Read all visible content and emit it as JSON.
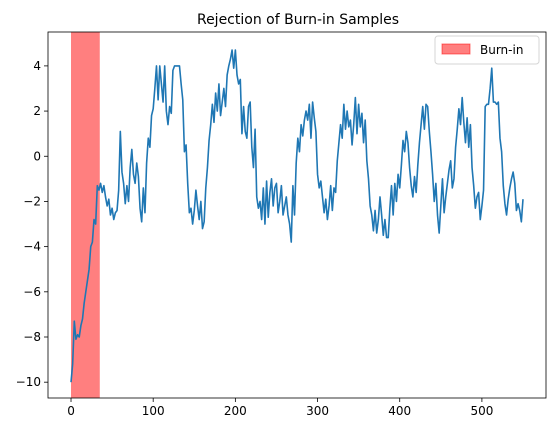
{
  "chart_data": {
    "type": "line",
    "title": "Rejection of Burn-in Samples",
    "xlabel": "",
    "ylabel": "",
    "xlim": [
      -28,
      578
    ],
    "ylim": [
      -10.7,
      5.5
    ],
    "xticks": [
      0,
      100,
      200,
      300,
      400,
      500
    ],
    "yticks": [
      -10,
      -8,
      -6,
      -4,
      -2,
      0,
      2,
      4
    ],
    "xtick_labels": [
      "0",
      "100",
      "200",
      "300",
      "400",
      "500"
    ],
    "ytick_labels": [
      "−10",
      "−8",
      "−6",
      "−4",
      "−2",
      "0",
      "2",
      "4"
    ],
    "grid": false,
    "legend_position": "top-right",
    "burn_in": {
      "name": "Burn-in",
      "x_start": 0,
      "x_end": 35,
      "color": "#ff0000",
      "opacity": 0.5
    },
    "series": [
      {
        "color": "#1f77b4",
        "points": [
          [
            0,
            -10.0
          ],
          [
            2,
            -9.2
          ],
          [
            4,
            -7.3
          ],
          [
            6,
            -8.1
          ],
          [
            8,
            -7.9
          ],
          [
            10,
            -8.0
          ],
          [
            12,
            -7.5
          ],
          [
            14,
            -7.2
          ],
          [
            16,
            -6.5
          ],
          [
            18,
            -6.0
          ],
          [
            20,
            -5.5
          ],
          [
            22,
            -5.0
          ],
          [
            24,
            -4.0
          ],
          [
            26,
            -3.8
          ],
          [
            28,
            -2.8
          ],
          [
            30,
            -3.0
          ],
          [
            32,
            -1.3
          ],
          [
            34,
            -1.5
          ],
          [
            36,
            -1.2
          ],
          [
            38,
            -1.6
          ],
          [
            40,
            -1.3
          ],
          [
            42,
            -1.8
          ],
          [
            44,
            -2.2
          ],
          [
            46,
            -1.9
          ],
          [
            48,
            -2.6
          ],
          [
            50,
            -2.3
          ],
          [
            52,
            -2.8
          ],
          [
            54,
            -2.5
          ],
          [
            56,
            -2.4
          ],
          [
            58,
            -1.5
          ],
          [
            60,
            1.1
          ],
          [
            62,
            -0.7
          ],
          [
            64,
            -1.2
          ],
          [
            66,
            -2.1
          ],
          [
            68,
            -1.3
          ],
          [
            70,
            -2.0
          ],
          [
            72,
            -0.5
          ],
          [
            74,
            0.3
          ],
          [
            76,
            -0.8
          ],
          [
            78,
            -1.2
          ],
          [
            80,
            -0.3
          ],
          [
            82,
            -0.9
          ],
          [
            84,
            -2.3
          ],
          [
            86,
            -2.9
          ],
          [
            88,
            -1.4
          ],
          [
            90,
            -2.5
          ],
          [
            92,
            -0.3
          ],
          [
            94,
            0.8
          ],
          [
            96,
            0.4
          ],
          [
            98,
            1.8
          ],
          [
            100,
            2.1
          ],
          [
            102,
            3.0
          ],
          [
            104,
            4.0
          ],
          [
            106,
            2.5
          ],
          [
            108,
            4.0
          ],
          [
            110,
            3.2
          ],
          [
            112,
            2.4
          ],
          [
            114,
            4.0
          ],
          [
            116,
            2.0
          ],
          [
            118,
            1.4
          ],
          [
            120,
            2.2
          ],
          [
            122,
            1.9
          ],
          [
            124,
            3.8
          ],
          [
            126,
            4.0
          ],
          [
            128,
            4.0
          ],
          [
            130,
            4.0
          ],
          [
            132,
            4.0
          ],
          [
            134,
            3.2
          ],
          [
            136,
            2.5
          ],
          [
            138,
            0.2
          ],
          [
            140,
            0.5
          ],
          [
            142,
            -1.2
          ],
          [
            144,
            -2.5
          ],
          [
            146,
            -2.3
          ],
          [
            148,
            -3.0
          ],
          [
            150,
            -2.4
          ],
          [
            152,
            -1.5
          ],
          [
            154,
            -2.2
          ],
          [
            156,
            -2.8
          ],
          [
            158,
            -2.0
          ],
          [
            160,
            -3.2
          ],
          [
            162,
            -2.9
          ],
          [
            164,
            -1.4
          ],
          [
            166,
            -0.5
          ],
          [
            168,
            0.7
          ],
          [
            170,
            1.4
          ],
          [
            172,
            2.3
          ],
          [
            174,
            1.5
          ],
          [
            176,
            2.8
          ],
          [
            178,
            2.0
          ],
          [
            180,
            3.2
          ],
          [
            182,
            1.8
          ],
          [
            184,
            2.4
          ],
          [
            186,
            3.0
          ],
          [
            188,
            2.2
          ],
          [
            190,
            3.6
          ],
          [
            192,
            4.0
          ],
          [
            194,
            4.3
          ],
          [
            196,
            4.7
          ],
          [
            198,
            3.9
          ],
          [
            200,
            4.7
          ],
          [
            202,
            3.6
          ],
          [
            204,
            3.2
          ],
          [
            206,
            3.4
          ],
          [
            208,
            1.0
          ],
          [
            210,
            2.2
          ],
          [
            212,
            1.1
          ],
          [
            214,
            0.8
          ],
          [
            216,
            2.2
          ],
          [
            218,
            2.4
          ],
          [
            220,
            0.4
          ],
          [
            222,
            -0.5
          ],
          [
            224,
            1.2
          ],
          [
            226,
            -1.8
          ],
          [
            228,
            -2.3
          ],
          [
            230,
            -2.0
          ],
          [
            232,
            -2.8
          ],
          [
            234,
            -1.4
          ],
          [
            236,
            -3.0
          ],
          [
            238,
            -1.1
          ],
          [
            240,
            -2.7
          ],
          [
            242,
            -1.6
          ],
          [
            244,
            -1.0
          ],
          [
            246,
            -2.2
          ],
          [
            248,
            -1.4
          ],
          [
            250,
            -1.2
          ],
          [
            252,
            -2.5
          ],
          [
            254,
            -2.0
          ],
          [
            256,
            -1.3
          ],
          [
            258,
            -2.6
          ],
          [
            260,
            -2.2
          ],
          [
            262,
            -1.8
          ],
          [
            264,
            -2.6
          ],
          [
            266,
            -3.0
          ],
          [
            268,
            -3.8
          ],
          [
            270,
            -1.3
          ],
          [
            272,
            -2.6
          ],
          [
            274,
            -0.3
          ],
          [
            276,
            0.8
          ],
          [
            278,
            0.2
          ],
          [
            280,
            1.4
          ],
          [
            282,
            0.9
          ],
          [
            284,
            1.6
          ],
          [
            286,
            2.0
          ],
          [
            288,
            1.6
          ],
          [
            290,
            2.3
          ],
          [
            292,
            0.8
          ],
          [
            294,
            2.4
          ],
          [
            296,
            1.7
          ],
          [
            298,
            1.1
          ],
          [
            300,
            -0.8
          ],
          [
            302,
            -1.4
          ],
          [
            304,
            -1.1
          ],
          [
            306,
            -1.8
          ],
          [
            308,
            -2.5
          ],
          [
            310,
            -1.9
          ],
          [
            312,
            -2.8
          ],
          [
            314,
            -2.2
          ],
          [
            316,
            -1.3
          ],
          [
            318,
            -2.4
          ],
          [
            320,
            -1.4
          ],
          [
            322,
            -1.6
          ],
          [
            324,
            -0.2
          ],
          [
            326,
            0.6
          ],
          [
            328,
            1.4
          ],
          [
            330,
            0.8
          ],
          [
            332,
            2.3
          ],
          [
            334,
            1.2
          ],
          [
            336,
            2.0
          ],
          [
            338,
            1.3
          ],
          [
            340,
            1.6
          ],
          [
            342,
            0.5
          ],
          [
            344,
            1.4
          ],
          [
            346,
            2.6
          ],
          [
            348,
            1.0
          ],
          [
            350,
            2.3
          ],
          [
            352,
            1.3
          ],
          [
            354,
            1.9
          ],
          [
            356,
            0.6
          ],
          [
            358,
            1.6
          ],
          [
            360,
            -0.2
          ],
          [
            362,
            -1.0
          ],
          [
            364,
            -2.2
          ],
          [
            366,
            -2.6
          ],
          [
            368,
            -3.3
          ],
          [
            370,
            -2.4
          ],
          [
            372,
            -3.4
          ],
          [
            374,
            -2.8
          ],
          [
            376,
            -1.8
          ],
          [
            378,
            -2.6
          ],
          [
            380,
            -3.5
          ],
          [
            382,
            -2.8
          ],
          [
            384,
            -3.6
          ],
          [
            386,
            -3.6
          ],
          [
            388,
            -2.3
          ],
          [
            390,
            -1.3
          ],
          [
            392,
            -2.6
          ],
          [
            394,
            -1.2
          ],
          [
            396,
            -2.0
          ],
          [
            398,
            -0.8
          ],
          [
            400,
            -1.4
          ],
          [
            402,
            -0.4
          ],
          [
            404,
            0.7
          ],
          [
            406,
            0.2
          ],
          [
            408,
            1.1
          ],
          [
            410,
            0.6
          ],
          [
            412,
            -0.5
          ],
          [
            414,
            -1.3
          ],
          [
            416,
            -1.8
          ],
          [
            418,
            -0.9
          ],
          [
            420,
            -1.6
          ],
          [
            422,
            -0.4
          ],
          [
            424,
            0.6
          ],
          [
            426,
            1.4
          ],
          [
            428,
            2.2
          ],
          [
            430,
            1.2
          ],
          [
            432,
            2.3
          ],
          [
            434,
            2.2
          ],
          [
            436,
            1.1
          ],
          [
            438,
            0.2
          ],
          [
            440,
            -0.8
          ],
          [
            442,
            -2.0
          ],
          [
            444,
            -1.2
          ],
          [
            446,
            -2.6
          ],
          [
            448,
            -3.4
          ],
          [
            450,
            -2.2
          ],
          [
            452,
            -1.0
          ],
          [
            454,
            -2.5
          ],
          [
            456,
            -1.8
          ],
          [
            458,
            -1.2
          ],
          [
            460,
            -0.6
          ],
          [
            462,
            -0.2
          ],
          [
            464,
            -1.4
          ],
          [
            466,
            -1.0
          ],
          [
            468,
            0.4
          ],
          [
            470,
            1.2
          ],
          [
            472,
            2.1
          ],
          [
            474,
            1.4
          ],
          [
            476,
            2.6
          ],
          [
            478,
            1.5
          ],
          [
            480,
            0.6
          ],
          [
            482,
            1.7
          ],
          [
            484,
            0.4
          ],
          [
            486,
            1.4
          ],
          [
            488,
            -0.5
          ],
          [
            490,
            -1.3
          ],
          [
            492,
            -2.3
          ],
          [
            494,
            -1.8
          ],
          [
            496,
            -1.6
          ],
          [
            498,
            -2.8
          ],
          [
            500,
            -2.2
          ],
          [
            502,
            -1.5
          ],
          [
            504,
            2.2
          ],
          [
            506,
            2.3
          ],
          [
            508,
            2.3
          ],
          [
            510,
            3.0
          ],
          [
            512,
            3.9
          ],
          [
            514,
            2.4
          ],
          [
            516,
            2.4
          ],
          [
            518,
            2.3
          ],
          [
            520,
            2.4
          ],
          [
            522,
            0.8
          ],
          [
            524,
            0.2
          ],
          [
            526,
            -1.3
          ],
          [
            528,
            -2.1
          ],
          [
            530,
            -2.6
          ],
          [
            532,
            -1.9
          ],
          [
            534,
            -1.4
          ],
          [
            536,
            -1.0
          ],
          [
            538,
            -0.7
          ],
          [
            540,
            -1.2
          ],
          [
            542,
            -2.4
          ],
          [
            544,
            -2.1
          ],
          [
            546,
            -2.4
          ],
          [
            548,
            -2.9
          ],
          [
            550,
            -1.9
          ]
        ]
      }
    ]
  }
}
